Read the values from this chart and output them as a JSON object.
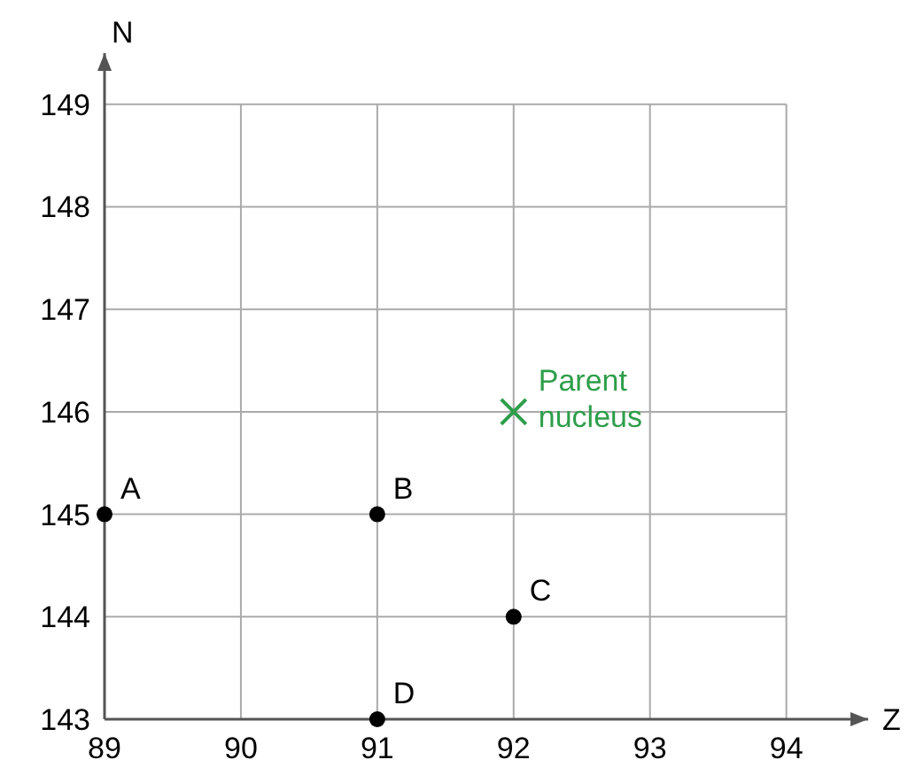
{
  "chart_data": {
    "type": "scatter",
    "xlabel": "Z",
    "ylabel": "N",
    "xlim": [
      89,
      94.6
    ],
    "ylim": [
      143,
      149.5
    ],
    "xticks": [
      89,
      90,
      91,
      92,
      93,
      94
    ],
    "yticks": [
      143,
      144,
      145,
      146,
      147,
      148,
      149
    ],
    "grid": true,
    "series": [
      {
        "color": "#000000",
        "marker": "circle",
        "x": [
          89,
          91,
          92,
          91
        ],
        "values": [
          145,
          145,
          144,
          143
        ],
        "value_labels": [
          "A",
          "B",
          "C",
          "D"
        ]
      },
      {
        "name": "Parent nucleus",
        "color": "#2e9e4a",
        "marker": "cross",
        "x": [
          92
        ],
        "values": [
          146
        ]
      }
    ]
  }
}
